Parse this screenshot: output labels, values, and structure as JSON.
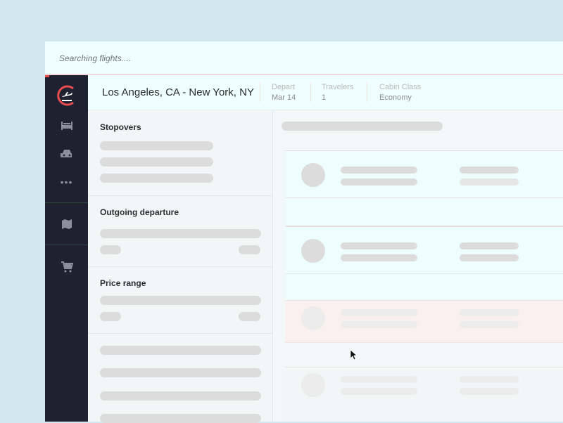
{
  "search_status": "Searching flights....",
  "header": {
    "route": "Los Angeles, CA - New York, NY",
    "depart": {
      "label": "Depart",
      "value": "Mar 14"
    },
    "travelers": {
      "label": "Travelers",
      "value": "1"
    },
    "cabin": {
      "label": "Cabin Class",
      "value": "Economy"
    }
  },
  "sidebar": {
    "items": [
      {
        "icon": "flight-icon",
        "active": true
      },
      {
        "icon": "hotel-bed-icon"
      },
      {
        "icon": "car-icon"
      },
      {
        "icon": "more-icon"
      },
      {
        "icon": "map-icon"
      },
      {
        "icon": "cart-icon"
      }
    ]
  },
  "filters": [
    {
      "title": "Stopovers"
    },
    {
      "title": "Outgoing departure"
    },
    {
      "title": "Price range"
    }
  ],
  "colors": {
    "accent": "#e94e4e",
    "sidebar": "#1f2130",
    "skeleton": "#dcdcdc"
  }
}
